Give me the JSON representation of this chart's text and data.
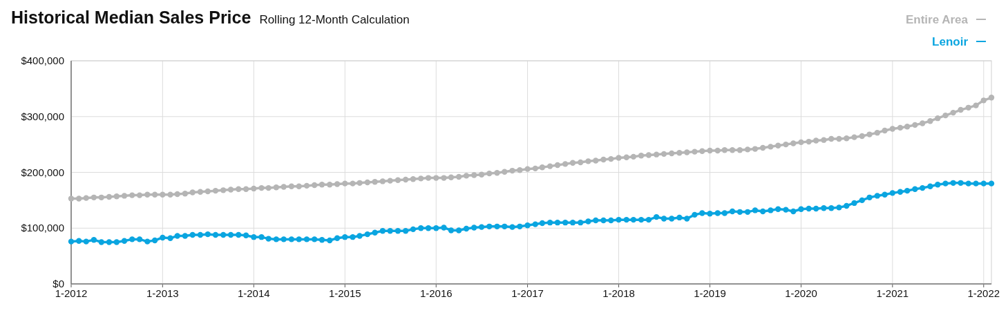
{
  "chart_data": {
    "type": "line",
    "title": "Historical Median Sales Price",
    "subtitle": "Rolling 12-Month Calculation",
    "x": [
      "2012-01",
      "2012-02",
      "2012-03",
      "2012-04",
      "2012-05",
      "2012-06",
      "2012-07",
      "2012-08",
      "2012-09",
      "2012-10",
      "2012-11",
      "2012-12",
      "2013-01",
      "2013-02",
      "2013-03",
      "2013-04",
      "2013-05",
      "2013-06",
      "2013-07",
      "2013-08",
      "2013-09",
      "2013-10",
      "2013-11",
      "2013-12",
      "2014-01",
      "2014-02",
      "2014-03",
      "2014-04",
      "2014-05",
      "2014-06",
      "2014-07",
      "2014-08",
      "2014-09",
      "2014-10",
      "2014-11",
      "2014-12",
      "2015-01",
      "2015-02",
      "2015-03",
      "2015-04",
      "2015-05",
      "2015-06",
      "2015-07",
      "2015-08",
      "2015-09",
      "2015-10",
      "2015-11",
      "2015-12",
      "2016-01",
      "2016-02",
      "2016-03",
      "2016-04",
      "2016-05",
      "2016-06",
      "2016-07",
      "2016-08",
      "2016-09",
      "2016-10",
      "2016-11",
      "2016-12",
      "2017-01",
      "2017-02",
      "2017-03",
      "2017-04",
      "2017-05",
      "2017-06",
      "2017-07",
      "2017-08",
      "2017-09",
      "2017-10",
      "2017-11",
      "2017-12",
      "2018-01",
      "2018-02",
      "2018-03",
      "2018-04",
      "2018-05",
      "2018-06",
      "2018-07",
      "2018-08",
      "2018-09",
      "2018-10",
      "2018-11",
      "2018-12",
      "2019-01",
      "2019-02",
      "2019-03",
      "2019-04",
      "2019-05",
      "2019-06",
      "2019-07",
      "2019-08",
      "2019-09",
      "2019-10",
      "2019-11",
      "2019-12",
      "2020-01",
      "2020-02",
      "2020-03",
      "2020-04",
      "2020-05",
      "2020-06",
      "2020-07",
      "2020-08",
      "2020-09",
      "2020-10",
      "2020-11",
      "2020-12",
      "2021-01",
      "2021-02",
      "2021-03",
      "2021-04",
      "2021-05",
      "2021-06",
      "2021-07",
      "2021-08",
      "2021-09",
      "2021-10",
      "2021-11",
      "2021-12",
      "2022-01",
      "2022-02"
    ],
    "series": [
      {
        "name": "Entire Area",
        "color": "#b5b5b5",
        "values": [
          153000,
          153000,
          154000,
          155000,
          155000,
          156000,
          157000,
          158000,
          159000,
          159000,
          160000,
          160000,
          160000,
          160000,
          161000,
          162000,
          164000,
          165000,
          166000,
          167000,
          168000,
          169000,
          170000,
          170000,
          171000,
          172000,
          172000,
          173000,
          174000,
          175000,
          175000,
          176000,
          177000,
          178000,
          178000,
          179000,
          180000,
          180000,
          181000,
          182000,
          183000,
          184000,
          185000,
          186000,
          187000,
          188000,
          189000,
          190000,
          190000,
          190000,
          191000,
          192000,
          194000,
          195000,
          196000,
          198000,
          199000,
          201000,
          203000,
          204000,
          206000,
          207000,
          209000,
          211000,
          213000,
          215000,
          217000,
          218000,
          220000,
          221000,
          223000,
          224000,
          226000,
          227000,
          228000,
          230000,
          231000,
          232000,
          233000,
          234000,
          235000,
          236000,
          237000,
          238000,
          239000,
          239000,
          240000,
          240000,
          240000,
          241000,
          242000,
          244000,
          246000,
          248000,
          250000,
          252000,
          254000,
          255000,
          257000,
          258000,
          260000,
          260000,
          261000,
          263000,
          265000,
          268000,
          271000,
          275000,
          278000,
          280000,
          282000,
          285000,
          288000,
          292000,
          297000,
          302000,
          307000,
          312000,
          316000,
          320000,
          329000,
          334000
        ]
      },
      {
        "name": "Lenoir",
        "color": "#0aa5e0",
        "values": [
          76000,
          77000,
          76000,
          79000,
          75000,
          75000,
          75000,
          77000,
          80000,
          80000,
          76000,
          78000,
          83000,
          82000,
          86000,
          86000,
          88000,
          88000,
          89000,
          88000,
          88000,
          88000,
          88000,
          87000,
          84000,
          84000,
          81000,
          80000,
          80000,
          80000,
          80000,
          80000,
          80000,
          79000,
          78000,
          82000,
          84000,
          84000,
          86000,
          89000,
          92000,
          95000,
          95000,
          95000,
          95000,
          98000,
          100000,
          100000,
          100000,
          101000,
          96000,
          96000,
          99000,
          101000,
          102000,
          103000,
          103000,
          103000,
          102000,
          103000,
          105000,
          107000,
          109000,
          110000,
          110000,
          110000,
          110000,
          110000,
          112000,
          114000,
          114000,
          114000,
          115000,
          115000,
          115000,
          115000,
          115000,
          120000,
          117000,
          117000,
          119000,
          117000,
          124000,
          127000,
          126000,
          127000,
          127000,
          130000,
          129000,
          129000,
          132000,
          130000,
          132000,
          134000,
          133000,
          130000,
          134000,
          135000,
          135000,
          136000,
          136000,
          137000,
          140000,
          145000,
          150000,
          155000,
          158000,
          160000,
          163000,
          165000,
          167000,
          170000,
          172000,
          175000,
          178000,
          180000,
          181000,
          181000,
          180000,
          180000,
          180000,
          180000
        ]
      }
    ],
    "xlim": [
      "2012-01",
      "2022-02"
    ],
    "xticks": [
      {
        "value": "2012-01",
        "label": "1-2012"
      },
      {
        "value": "2013-01",
        "label": "1-2013"
      },
      {
        "value": "2014-01",
        "label": "1-2014"
      },
      {
        "value": "2015-01",
        "label": "1-2015"
      },
      {
        "value": "2016-01",
        "label": "1-2016"
      },
      {
        "value": "2017-01",
        "label": "1-2017"
      },
      {
        "value": "2018-01",
        "label": "1-2018"
      },
      {
        "value": "2019-01",
        "label": "1-2019"
      },
      {
        "value": "2020-01",
        "label": "1-2020"
      },
      {
        "value": "2021-01",
        "label": "1-2021"
      },
      {
        "value": "2022-01",
        "label": "1-2022"
      }
    ],
    "ylim": [
      0,
      400000
    ],
    "yticks": [
      {
        "value": 0,
        "label": "$0"
      },
      {
        "value": 100000,
        "label": "$100,000"
      },
      {
        "value": 200000,
        "label": "$200,000"
      },
      {
        "value": 300000,
        "label": "$300,000"
      },
      {
        "value": 400000,
        "label": "$400,000"
      }
    ],
    "grid": true,
    "legend": "top right",
    "marker": "circle",
    "line_style": "solid"
  }
}
